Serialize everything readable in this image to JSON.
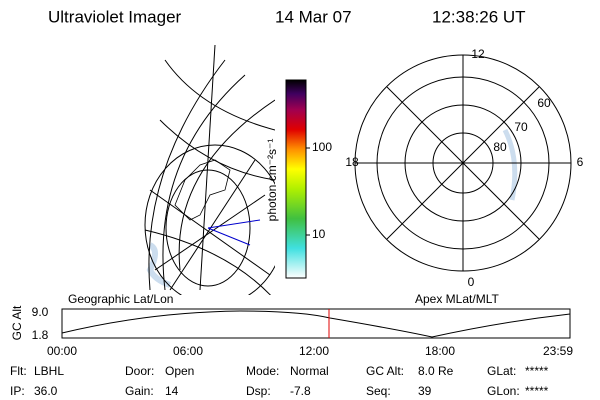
{
  "header": {
    "title": "Ultraviolet Imager",
    "date": "14 Mar 07",
    "time": "12:38:26 UT"
  },
  "colorbar": {
    "label": "photon cm⁻²s⁻¹",
    "ticks": [
      "100",
      "10"
    ]
  },
  "polar": {
    "mlt_labels": [
      "12",
      "18",
      "6",
      "0"
    ],
    "lat_labels": [
      "60",
      "70",
      "80"
    ]
  },
  "timeline": {
    "left_title": "Geographic Lat/Lon",
    "right_title": "Apex MLat/MLT",
    "axis_label": "GC Alt",
    "y_labels": [
      "9.0",
      "1.8"
    ],
    "x_labels": [
      "00:00",
      "06:00",
      "12:00",
      "18:00",
      "23:59"
    ]
  },
  "footer": {
    "rows": [
      [
        {
          "label": "Flt:",
          "value": "LBHL"
        },
        {
          "label": "Door:",
          "value": "Open"
        },
        {
          "label": "Mode:",
          "value": "Normal"
        },
        {
          "label": "GC Alt:",
          "value": "8.0 Re"
        },
        {
          "label": "GLat:",
          "value": "*****"
        }
      ],
      [
        {
          "label": "IP:",
          "value": "36.0"
        },
        {
          "label": "Gain:",
          "value": "14"
        },
        {
          "label": "Dsp:",
          "value": "-7.8"
        },
        {
          "label": "Seq:",
          "value": "39"
        },
        {
          "label": "GLon:",
          "value": "*****"
        }
      ]
    ]
  }
}
